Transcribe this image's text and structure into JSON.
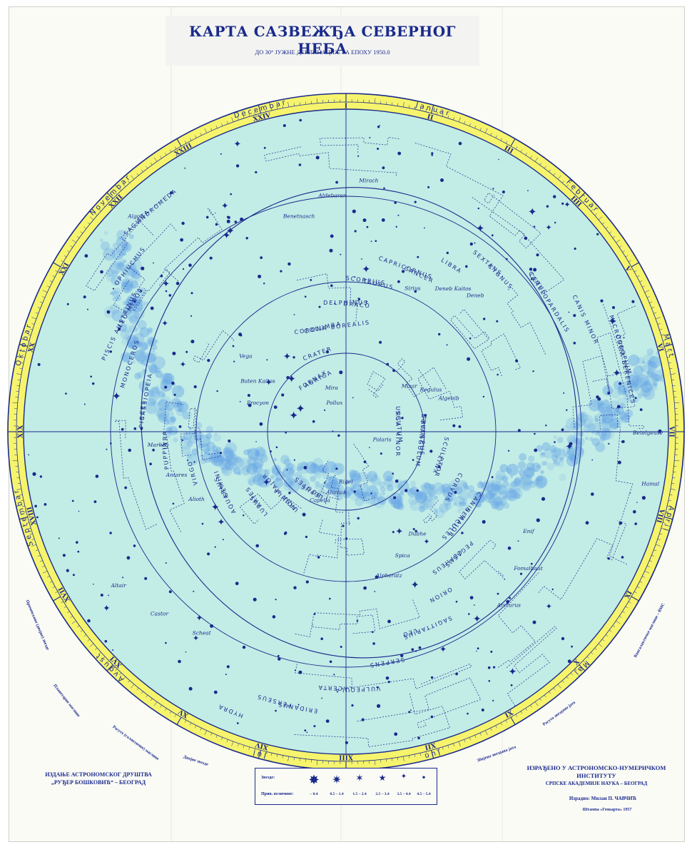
{
  "title": "КАРТА САЗВЕЖЂА СЕВЕРНОГ НЕБА",
  "subtitle": "ДО 30° ЈУЖНЕ ДЕКЛИНАЦИЈЕ ЗА ЕПОХУ 1950.0",
  "publisher": [
    "ИЗДАЊЕ АСТРОНОМСКОГ ДРУШТВА",
    "„РУЂЕР БОШКОВИЋ“ – БЕОГРАД"
  ],
  "institute": [
    "ИЗРАЂЕНО У АСТРОНОМСКО-НУМЕРИЧКОМ ИНСТИТУТУ",
    "СРПСКЕ АКАДЕМИЈЕ НАУКА – БЕОГРАД"
  ],
  "author": "Израдио: Милан П. ЧАВЧИЋ",
  "printed": "Штампа »Геокарта« 1957",
  "legend": {
    "stars_label": "Звезде:",
    "magnitude_label": "Прив. величине:",
    "magnitudes": [
      "– 0.4",
      "0.5 – 1.4",
      "1.5 – 2.4",
      "2.5 – 3.4",
      "3.5 – 4.4",
      "4.5 – 5.4"
    ],
    "symbols": [
      "✸",
      "✷",
      "✶",
      "★",
      "✦",
      "•"
    ]
  },
  "side_notes": {
    "variable": "Променљиве (двојне) звезде",
    "planetary": "Планетарне маглине",
    "diffuse": "Расуте (галактичке) маглине",
    "double": "Двојне звезде",
    "open_clusters": "Збијена звездана јата",
    "globular": "Расуто звездано јато",
    "extragalactic": "Вангалактичке маглине – ВМС"
  },
  "rim": {
    "hours": [
      "I",
      "II",
      "III",
      "IIII",
      "V",
      "VI",
      "VII",
      "VIII",
      "IX",
      "X",
      "XI",
      "XII",
      "XIII",
      "XIV",
      "XV",
      "XVI",
      "XVII",
      "XVIII",
      "XIX",
      "XX",
      "XXI",
      "XXII",
      "XXIII",
      "XXIV"
    ],
    "months": [
      "J a n u a r",
      "F e b r u a r",
      "M a r t",
      "A p r i l",
      "M a j",
      "J u n",
      "J u l",
      "A v g u s t",
      "S e p t e m b a r",
      "O k t o b a r",
      "N o v e m b a r",
      "D e c e m b a r"
    ]
  },
  "constellations": [
    "URSA MINOR",
    "URSA MAJOR",
    "DRACO",
    "CEPHEUS",
    "CASSIOPEIA",
    "CAMELOPARDALIS",
    "PERSEUS",
    "AURIGA",
    "LYNX",
    "GEMINI",
    "CANCER",
    "LEO",
    "LEO MINOR",
    "COMA BERENICES",
    "BOOTES",
    "CORONA BOREALIS",
    "HERCULES",
    "LYRA",
    "CYGNUS",
    "LACERTA",
    "ANDROMEDA",
    "TRIANGULUM",
    "ARIES",
    "TAURUS",
    "ORION",
    "MONOCEROS",
    "CANIS MINOR",
    "HYDRA",
    "CRATER",
    "CORVUS",
    "VIRGO",
    "LIBRA",
    "SERPENS",
    "OPHIUCHUS",
    "SCUTUM",
    "AQUILA",
    "DELPHINUS",
    "PEGASUS",
    "PISCES",
    "CETUS",
    "ERIDANUS",
    "FORNAX",
    "SCULPTOR",
    "AQUARIUS",
    "CAPRICORNUS",
    "SAGITTARIUS",
    "PISCIS AUSTRINUS",
    "MICROSCOPIUM",
    "LEPUS",
    "COLUMBA",
    "CANIS MAJOR",
    "PUPPIS",
    "SEXTANS",
    "VULPECULA",
    "SAGITTA",
    "EQUULEUS",
    "LUPUS",
    "SCORPIUS"
  ],
  "stars": [
    "Polaris",
    "Capella",
    "Vega",
    "Deneb",
    "Arcturus",
    "Altair",
    "Mira",
    "Algenib",
    "Alpheratz",
    "Markab",
    "Mirach",
    "Hamal",
    "Alamak",
    "Baten Kaitos",
    "Deneb Kaitos",
    "Fomalhaut",
    "Castor",
    "Pollux",
    "Regulus",
    "Spica",
    "Antares",
    "Aldebaran",
    "Betelgeuse",
    "Rigel",
    "Procyon",
    "Sirius",
    "Enif",
    "Scheat",
    "Algol",
    "Mizar",
    "Dubhe",
    "Alioth",
    "Benetnasch"
  ],
  "colors": {
    "ink": "#1a2a8c",
    "sky": "#c2ece6",
    "rim": "#f6f46c",
    "milky_way": "#6aa8e6"
  }
}
